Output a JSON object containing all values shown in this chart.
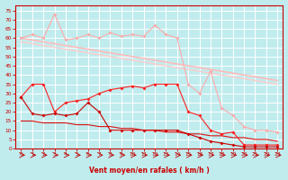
{
  "bg_color": "#c0ecee",
  "grid_color": "#ffffff",
  "xlabel": "Vent moyen/en rafales ( km/h )",
  "x": [
    0,
    1,
    2,
    3,
    4,
    5,
    6,
    7,
    8,
    9,
    10,
    11,
    12,
    13,
    14,
    15,
    16,
    17,
    18,
    19,
    20,
    21,
    22,
    23
  ],
  "rafales": [
    60,
    62,
    60,
    73,
    59,
    60,
    62,
    60,
    63,
    61,
    62,
    61,
    67,
    62,
    60,
    35,
    30,
    42,
    22,
    18,
    12,
    10,
    10,
    9
  ],
  "trend_hi1": [
    60,
    59,
    58,
    57,
    56,
    55,
    54,
    53,
    52,
    51,
    50,
    49,
    48,
    47,
    46,
    45,
    44,
    43,
    42,
    41,
    40,
    39,
    38,
    37
  ],
  "trend_hi2": [
    58,
    57,
    56,
    55,
    54,
    53,
    52,
    51,
    50,
    49,
    48,
    47,
    46,
    45,
    44,
    43,
    42,
    41,
    40,
    39,
    38,
    37,
    36,
    35
  ],
  "wind_avg": [
    28,
    35,
    35,
    20,
    25,
    26,
    27,
    30,
    32,
    33,
    34,
    33,
    35,
    35,
    35,
    20,
    18,
    10,
    8,
    9,
    2,
    2,
    2,
    2
  ],
  "wind_min": [
    28,
    19,
    18,
    19,
    18,
    19,
    25,
    20,
    10,
    10,
    10,
    10,
    10,
    10,
    10,
    8,
    6,
    4,
    3,
    2,
    1,
    1,
    1,
    1
  ],
  "trend_lo": [
    15,
    15,
    14,
    14,
    14,
    13,
    13,
    12,
    12,
    11,
    11,
    10,
    10,
    9,
    9,
    8,
    8,
    7,
    7,
    6,
    6,
    5,
    5,
    4
  ],
  "color_rafales": "#ffaaaa",
  "color_trend_hi1": "#ffbbbb",
  "color_trend_hi2": "#ffcccc",
  "color_wind_avg": "#ff2020",
  "color_wind_min": "#cc0000",
  "color_trend_lo": "#dd1111",
  "color_axes": "#cc0000",
  "ylim": [
    0,
    78
  ],
  "xlim": [
    -0.5,
    23.5
  ],
  "yticks": [
    0,
    5,
    10,
    15,
    20,
    25,
    30,
    35,
    40,
    45,
    50,
    55,
    60,
    65,
    70,
    75
  ],
  "xticks": [
    0,
    1,
    2,
    3,
    4,
    5,
    6,
    7,
    8,
    9,
    10,
    11,
    12,
    13,
    14,
    15,
    16,
    17,
    18,
    19,
    20,
    21,
    22,
    23
  ]
}
